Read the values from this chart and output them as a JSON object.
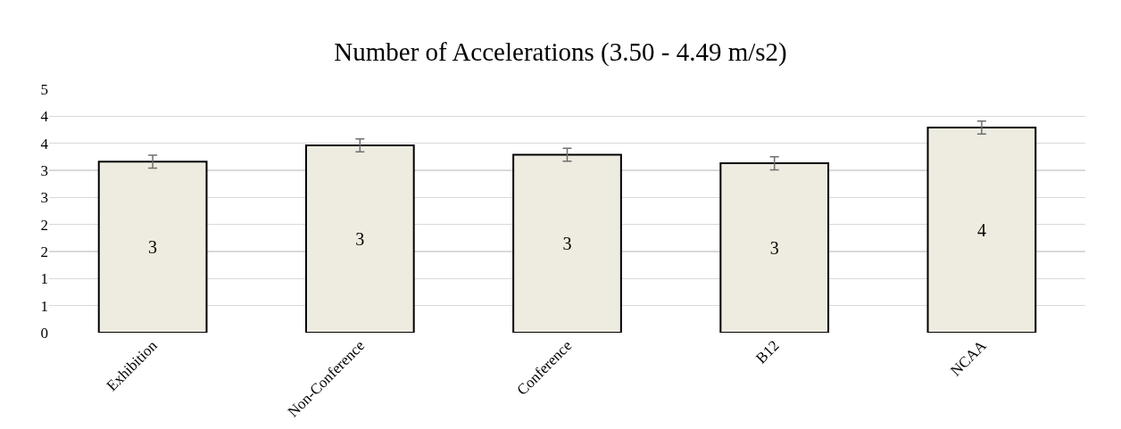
{
  "chart_data": {
    "type": "bar",
    "title": "Number of Accelerations (3.50 - 4.49 m/s2)",
    "categories": [
      "Exhibition",
      "Non-Conference",
      "Conference",
      "B12",
      "NCAA"
    ],
    "values": [
      3.16,
      3.46,
      3.29,
      3.13,
      3.79
    ],
    "value_labels": [
      "3",
      "3",
      "3",
      "3",
      "4"
    ],
    "errors": [
      0.12,
      0.12,
      0.12,
      0.12,
      0.12
    ],
    "color": "#eeebe0",
    "ylim": [
      0,
      4.5
    ],
    "yticks": [
      {
        "value": 0,
        "label": "0"
      },
      {
        "value": 0.5,
        "label": "1"
      },
      {
        "value": 1,
        "label": "1"
      },
      {
        "value": 1.5,
        "label": "2"
      },
      {
        "value": 2,
        "label": "2"
      },
      {
        "value": 2.5,
        "label": "3"
      },
      {
        "value": 3,
        "label": "3"
      },
      {
        "value": 3.5,
        "label": "4"
      },
      {
        "value": 4,
        "label": "4"
      },
      {
        "value": 4.5,
        "label": "5"
      }
    ],
    "grid": "y",
    "legend": false
  }
}
